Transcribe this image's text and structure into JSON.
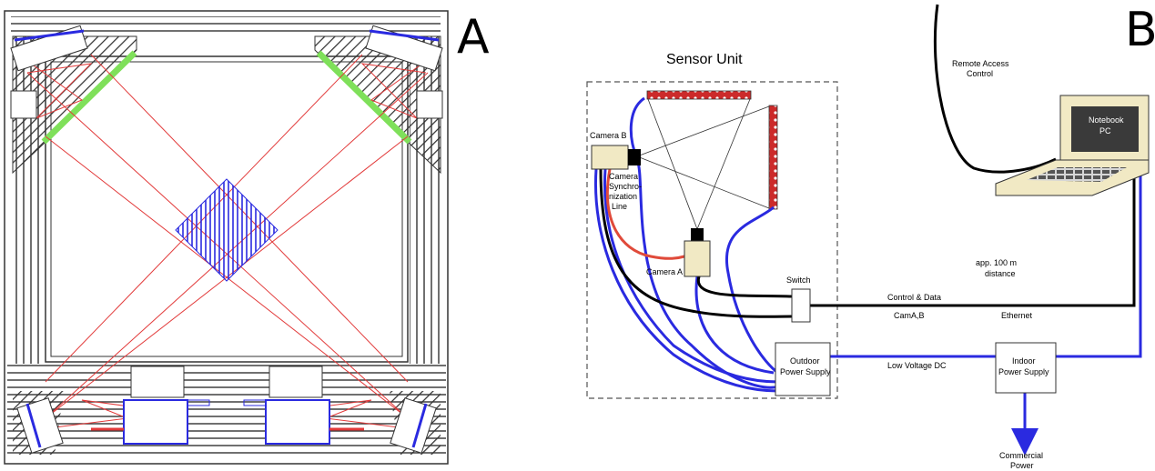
{
  "panels": {
    "a_letter": "A",
    "b_letter": "B"
  },
  "diagram_b": {
    "sensor_unit_title": "Sensor Unit",
    "camera_b": "Camera B",
    "camera_a": "Camera A",
    "sync_line": [
      "Camera",
      "Synchro-",
      "nization",
      "Line"
    ],
    "switch": "Switch",
    "outdoor_power": [
      "Outdoor",
      "Power Supply"
    ],
    "indoor_power": [
      "Indoor",
      "Power Supply"
    ],
    "notebook": [
      "Notebook",
      "PC"
    ],
    "remote_access": [
      "Remote Access",
      "Control"
    ],
    "distance": [
      "app. 100 m",
      "distance"
    ],
    "control_data": "Control & Data",
    "cam_ab": "CamA,B",
    "ethernet": "Ethernet",
    "low_voltage": "Low Voltage DC",
    "commercial_power": [
      "Commercial",
      "Power"
    ]
  },
  "colors": {
    "frame_line": "#333333",
    "laser_red": "#e23a3a",
    "green_strip": "#7fe05a",
    "blue": "#2a2ae0",
    "black_cable": "#000000",
    "red_cable": "#e04a3a",
    "led_bar": "#cc2a2a",
    "laptop_body": "#f1e9c4",
    "laptop_screen": "#3a3a3a"
  }
}
